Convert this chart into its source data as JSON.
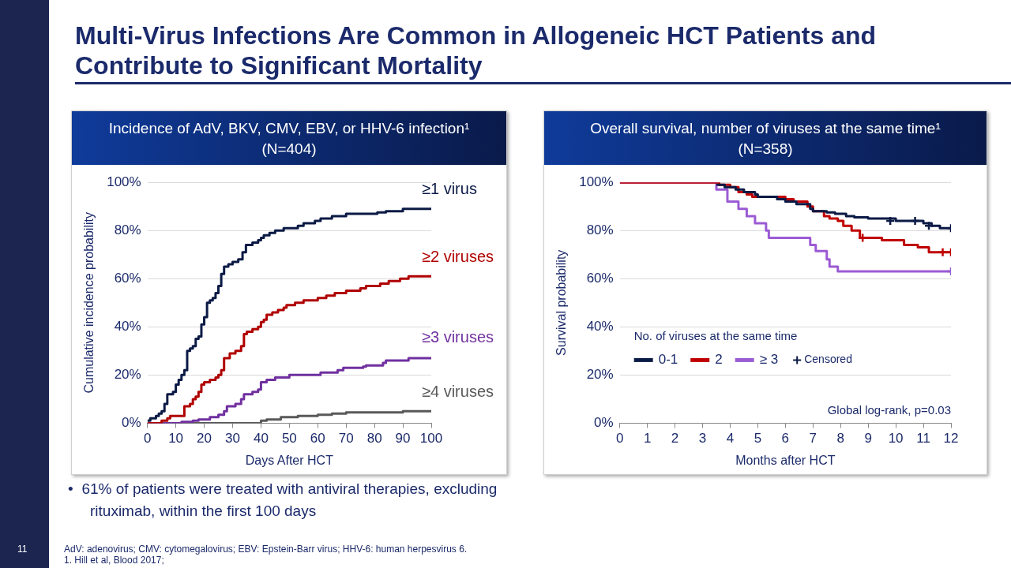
{
  "chart_data": [
    {
      "type": "step",
      "title": "Incidence of AdV, BKV, CMV, EBV, or HHV-6 infection¹",
      "subtitle": "(N=404)",
      "xlabel": "Days After HCT",
      "ylabel": "Cumulative incidence probability",
      "annotations": [
        "Multi-Virus Infections Are Common in Allogeneic HCT Patients and Contribute to Significant Mortality",
        "•\t61% of patients were treated with antiviral therapies, excluding rituximab, within the first 100 days",
        "AdV: adenovirus; CMV: cytomegalovirus; EBV: Epstein-Barr virus; HHV-6: human herpesvirus 6.",
        "1. Hill et al, Blood 2017;",
        "11"
      ],
      "series": [
        {
          "name": "≥1 virus",
          "color": "#0b1a45",
          "x": [
            0,
            1,
            3,
            4,
            5,
            6,
            7,
            9,
            10,
            11,
            12,
            13,
            14,
            15,
            16,
            17,
            18,
            19,
            20,
            21,
            22,
            23,
            24,
            25,
            26,
            27,
            28.5,
            30,
            32,
            33.5,
            34.7,
            37,
            39,
            40,
            41,
            43,
            45,
            48,
            53,
            55,
            59,
            61,
            65,
            70,
            81,
            84,
            90,
            100
          ],
          "values": [
            1,
            2,
            3,
            4,
            5,
            8,
            12,
            13,
            16,
            18,
            20,
            22,
            30,
            31,
            32,
            35,
            36,
            41,
            44,
            50,
            51,
            52,
            54,
            57,
            62,
            65,
            66,
            67,
            68,
            71,
            74,
            75,
            76,
            77,
            78,
            79,
            80,
            81,
            82,
            83,
            84,
            85,
            86,
            87,
            87.5,
            88,
            89,
            89
          ]
        },
        {
          "name": "≥2 viruses",
          "color": "#b00000",
          "x": [
            0,
            5,
            7,
            8,
            13,
            15,
            16,
            17,
            18,
            19,
            20,
            22,
            24,
            25,
            26,
            27,
            29,
            31,
            33,
            34,
            35,
            37,
            39,
            40,
            41,
            42,
            44,
            46,
            48,
            49,
            52,
            55,
            60,
            63,
            66,
            70,
            75,
            77,
            82,
            85,
            89,
            92,
            100
          ],
          "values": [
            0,
            1,
            2,
            3,
            7,
            8,
            10,
            11,
            13,
            16,
            17,
            18,
            19,
            20,
            22,
            27,
            29,
            30,
            32,
            37,
            38,
            39,
            40,
            42,
            43,
            45,
            46,
            47,
            48,
            49,
            50,
            51,
            52,
            53,
            54,
            55,
            56,
            57,
            58,
            59,
            60,
            61,
            61
          ]
        },
        {
          "name": "≥3 viruses",
          "color": "#7030a0",
          "x": [
            0,
            12,
            16,
            18,
            22,
            25,
            27,
            28,
            31,
            33,
            34,
            37,
            39,
            40,
            42,
            45,
            50,
            61,
            67,
            69,
            76,
            77,
            83,
            84,
            92,
            100
          ],
          "values": [
            0,
            0.5,
            1,
            1.5,
            2.5,
            3.5,
            5,
            7,
            8,
            10,
            12,
            13,
            14,
            17,
            18,
            19,
            20,
            21,
            22,
            23,
            23.5,
            24,
            25,
            26,
            27,
            27.5
          ]
        },
        {
          "name": "≥4 viruses",
          "color": "#595959",
          "x": [
            0,
            40,
            42,
            47,
            53,
            60,
            65,
            70,
            90,
            100
          ],
          "values": [
            0,
            1,
            1.5,
            2.5,
            3,
            3.5,
            4,
            4.5,
            5,
            5
          ]
        }
      ],
      "xlim": [
        0,
        100
      ],
      "xticks": [
        0,
        10,
        20,
        30,
        40,
        50,
        60,
        70,
        80,
        90,
        100
      ],
      "ylim": [
        0,
        100
      ],
      "yticks": [
        {
          "value": 0,
          "label": "0%"
        },
        {
          "value": 20,
          "label": "20%"
        },
        {
          "value": 40,
          "label": "40%"
        },
        {
          "value": 60,
          "label": "60%"
        },
        {
          "value": 80,
          "label": "80%"
        },
        {
          "value": 100,
          "label": "100%"
        }
      ],
      "grid": "y",
      "legend": false
    },
    {
      "type": "step",
      "title": "Overall survival, number of viruses at the same time¹",
      "subtitle": "(N=358)",
      "xlabel": "Months after HCT",
      "ylabel": "Survival probability",
      "legend_title": "No. of viruses at the same time",
      "annotations": [
        "Global log-rank, p=0.03"
      ],
      "series": [
        {
          "name": "0-1",
          "color": "#0b1a45",
          "x": [
            3.5,
            3.8,
            4.2,
            4.5,
            4.9,
            5,
            5.7,
            6,
            6.4,
            6.9,
            7,
            7.5,
            7.8,
            8.2,
            8.5,
            9,
            10,
            11,
            11.3,
            11.6,
            12
          ],
          "values": [
            99,
            98,
            97,
            96,
            95,
            94,
            93,
            92,
            91,
            89,
            88,
            87.5,
            87,
            86,
            85.5,
            85,
            84,
            83,
            82,
            81,
            81
          ]
        },
        {
          "name": "2",
          "color": "#c00000",
          "x": [
            0,
            3.6,
            4,
            4.3,
            4.6,
            4.8,
            6,
            6.3,
            6.8,
            7,
            7.4,
            7.6,
            7.9,
            8.1,
            8.4,
            8.7,
            9.5,
            10.3,
            10.8,
            11.2,
            12
          ],
          "values": [
            100,
            99,
            98,
            96,
            95,
            94,
            93,
            92,
            90,
            88,
            86,
            85,
            84,
            82,
            80,
            77,
            76,
            74,
            73,
            71,
            71
          ]
        },
        {
          "name": "≥ 3",
          "color": "#9b5bd4",
          "x": [
            0,
            3.5,
            3.9,
            4.3,
            4.6,
            4.9,
            5.3,
            5.4,
            6.9,
            7.1,
            7.5,
            7.6,
            7.9,
            12
          ],
          "values": [
            100,
            97,
            92,
            89,
            86,
            83,
            80,
            77,
            74,
            71.5,
            68,
            65,
            63,
            63
          ]
        },
        {
          "name": "Censored",
          "type": "scatter",
          "marker": "cross",
          "color": "#0b1a45",
          "colors": [
            "#0b1a45",
            "#0b1a45",
            "#0b1a45",
            "#0b1a45",
            "#c00000",
            "#c00000",
            "#c00000",
            "#9b5bd4"
          ],
          "x": [
            9.8,
            10.7,
            11.2,
            12,
            8.8,
            11.7,
            12,
            12
          ],
          "values": [
            84,
            84,
            82,
            81,
            77,
            71,
            71,
            63
          ]
        }
      ],
      "xlim": [
        0,
        12
      ],
      "xticks": [
        0,
        1,
        2,
        3,
        4,
        5,
        6,
        7,
        8,
        9,
        10,
        11,
        12
      ],
      "ylim": [
        0,
        100
      ],
      "yticks": [
        {
          "value": 0,
          "label": "0%"
        },
        {
          "value": 20,
          "label": "20%"
        },
        {
          "value": 40,
          "label": "40%"
        },
        {
          "value": 60,
          "label": "60%"
        },
        {
          "value": 80,
          "label": "80%"
        },
        {
          "value": 100,
          "label": "100%"
        }
      ],
      "grid": "y",
      "legend": "bottom left"
    }
  ]
}
